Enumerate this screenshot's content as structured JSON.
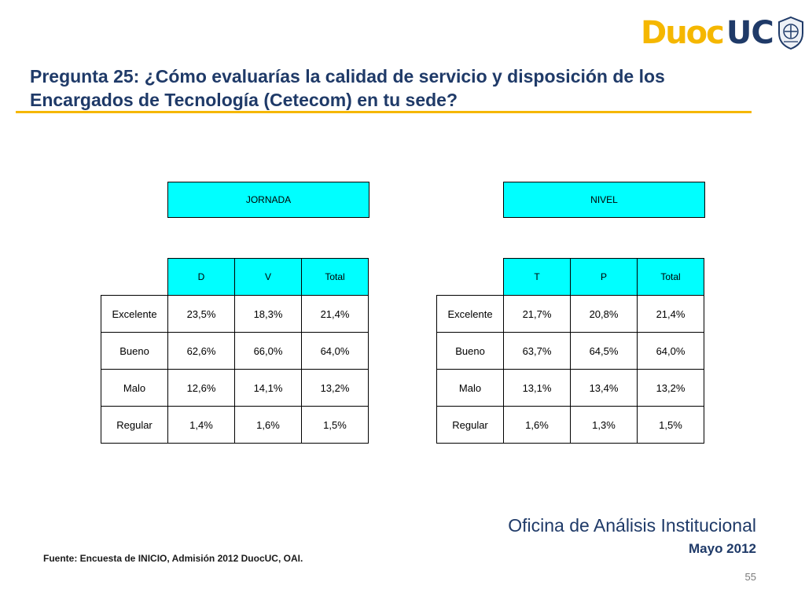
{
  "logo": {
    "part1": "Duoc",
    "part2": "UC"
  },
  "slide": {
    "title": "Pregunta 25: ¿Cómo evaluarías la calidad de servicio y disposición de los Encargados de Tecnología (Cetecom) en tu sede?"
  },
  "colors": {
    "title": "#1f3a68",
    "accent": "#f5b700",
    "header_fill": "#00ffff"
  },
  "jornada": {
    "header": "JORNADA",
    "columns": [
      "D",
      "V",
      "Total"
    ],
    "rows": [
      {
        "label": "Excelente",
        "values": [
          "23,5%",
          "18,3%",
          "21,4%"
        ]
      },
      {
        "label": "Bueno",
        "values": [
          "62,6%",
          "66,0%",
          "64,0%"
        ]
      },
      {
        "label": "Malo",
        "values": [
          "12,6%",
          "14,1%",
          "13,2%"
        ]
      },
      {
        "label": "Regular",
        "values": [
          "1,4%",
          "1,6%",
          "1,5%"
        ]
      }
    ]
  },
  "nivel": {
    "header": "NIVEL",
    "columns": [
      "T",
      "P",
      "Total"
    ],
    "rows": [
      {
        "label": "Excelente",
        "values": [
          "21,7%",
          "20,8%",
          "21,4%"
        ]
      },
      {
        "label": "Bueno",
        "values": [
          "63,7%",
          "64,5%",
          "64,0%"
        ]
      },
      {
        "label": "Malo",
        "values": [
          "13,1%",
          "13,4%",
          "13,2%"
        ]
      },
      {
        "label": "Regular",
        "values": [
          "1,6%",
          "1,3%",
          "1,5%"
        ]
      }
    ]
  },
  "footer": {
    "office": "Oficina de Análisis Institucional",
    "date": "Mayo 2012",
    "source": "Fuente: Encuesta de INICIO, Admisión 2012 DuocUC, OAI.",
    "page": "55"
  }
}
